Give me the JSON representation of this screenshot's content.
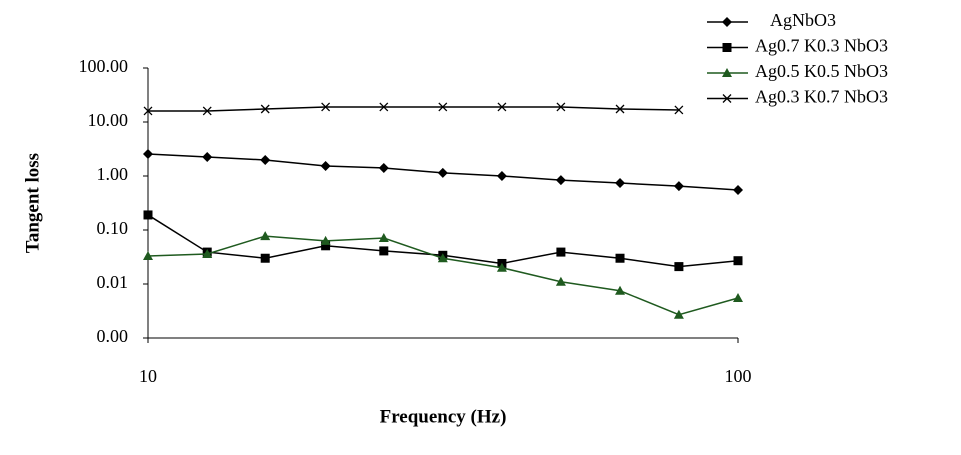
{
  "chart_data": {
    "type": "line",
    "xlabel": "Frequency (Hz)",
    "ylabel": "Tangent loss",
    "x": [
      10,
      12.6,
      15.8,
      20,
      25.1,
      31.6,
      39.8,
      50.1,
      63.1,
      79.4,
      100
    ],
    "xlim": [
      10,
      100
    ],
    "xticks": [
      10,
      100
    ],
    "xscale": "log",
    "ylim": [
      0.001,
      100
    ],
    "yscale": "log",
    "yticks": [
      {
        "value": 0.001,
        "label": "0.00"
      },
      {
        "value": 0.01,
        "label": "0.01"
      },
      {
        "value": 0.1,
        "label": "0.10"
      },
      {
        "value": 1,
        "label": "1.00"
      },
      {
        "value": 10,
        "label": "10.00"
      },
      {
        "value": 100,
        "label": "100.00"
      }
    ],
    "legend": "top-right",
    "series": [
      {
        "name": "AgNbO3",
        "color": "#000000",
        "marker": "diamond",
        "values": [
          2.55,
          2.25,
          1.98,
          1.53,
          1.41,
          1.14,
          1.0,
          0.84,
          0.74,
          0.65,
          0.55
        ]
      },
      {
        "name": "Ag0.7 K0.3 NbO3",
        "color": "#000000",
        "marker": "square",
        "values": [
          0.19,
          0.039,
          0.03,
          0.051,
          0.041,
          0.034,
          0.024,
          0.039,
          0.03,
          0.021,
          0.027
        ]
      },
      {
        "name": "Ag0.5 K0.5 NbO3",
        "color": "#1f5a1f",
        "marker": "triangle",
        "values": [
          0.033,
          0.036,
          0.077,
          0.063,
          0.071,
          0.03,
          0.02,
          0.011,
          0.0075,
          0.0027,
          0.0055
        ]
      },
      {
        "name": "Ag0.3 K0.7 NbO3",
        "color": "#000000",
        "marker": "x",
        "values": [
          16,
          16,
          17.4,
          19,
          19,
          19,
          19,
          19,
          17.4,
          16.7,
          null
        ]
      }
    ]
  }
}
